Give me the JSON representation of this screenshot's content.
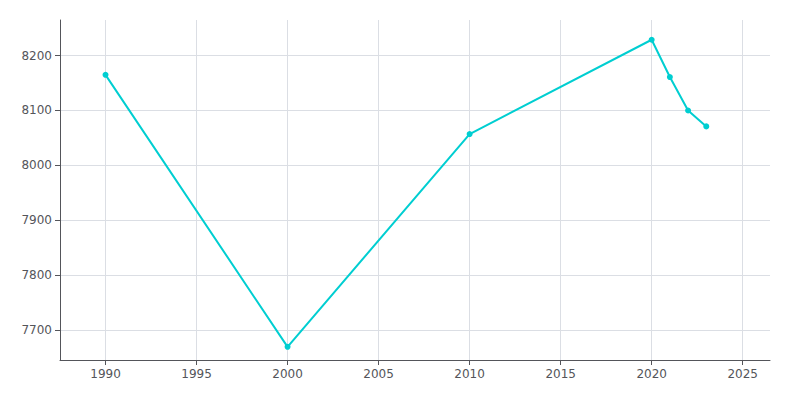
{
  "chart_data": {
    "type": "line",
    "x": [
      1990,
      2000,
      2010,
      2020,
      2021,
      2022,
      2023
    ],
    "values": [
      8165,
      7669,
      8057,
      8229,
      8161,
      8100,
      8071
    ],
    "color": "#00CED1",
    "marker": "circle",
    "xlim": [
      1987.5,
      2026.5
    ],
    "ylim": [
      7645,
      8265
    ],
    "xticks": [
      1990,
      1995,
      2000,
      2005,
      2010,
      2015,
      2020,
      2025
    ],
    "yticks": [
      7700,
      7800,
      7900,
      8000,
      8100,
      8200
    ],
    "grid": true
  }
}
